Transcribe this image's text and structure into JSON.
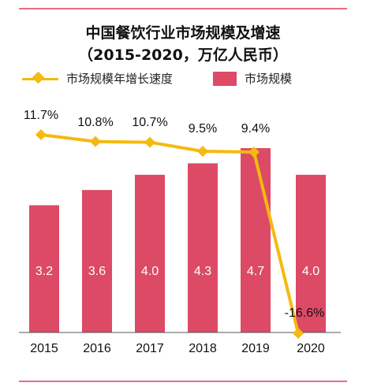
{
  "title_line1": "中国餐饮行业市场规模及增速",
  "title_line2": "（2015-2020，万亿人民币）",
  "legend": {
    "line_label": "市场规模年增长速度",
    "bar_label": "市场规模"
  },
  "colors": {
    "bar": "#dc4a66",
    "line": "#f5b90f",
    "rule": "#ee6b82",
    "axis": "#555555"
  },
  "chart_data": {
    "type": "bar",
    "categories": [
      "2015",
      "2016",
      "2017",
      "2018",
      "2019",
      "2020"
    ],
    "series": [
      {
        "name": "市场规模",
        "type": "bar",
        "values": [
          3.2,
          3.6,
          4.0,
          4.3,
          4.7,
          4.0
        ],
        "labels": [
          "3.2",
          "3.6",
          "4.0",
          "4.3",
          "4.7",
          "4.0"
        ]
      },
      {
        "name": "市场规模年增长速度",
        "type": "line",
        "values": [
          11.7,
          10.8,
          10.7,
          9.5,
          9.4,
          -16.6
        ],
        "labels": [
          "11.7%",
          "10.8%",
          "10.7%",
          "9.5%",
          "9.4%",
          "-16.6%"
        ]
      }
    ],
    "title": "中国餐饮行业市场规模及增速",
    "subtitle": "（2015-2020，万亿人民币）",
    "legend_position": "top"
  }
}
